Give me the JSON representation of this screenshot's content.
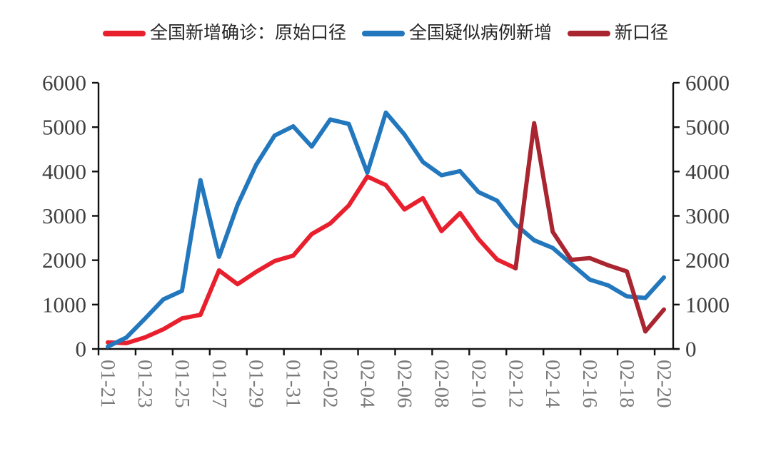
{
  "legend": {
    "items": [
      {
        "key": "confirmed_original",
        "label": "全国新增确诊：原始口径",
        "color": "#e8202d"
      },
      {
        "key": "suspected_new",
        "label": "全国疑似病例新增",
        "color": "#2277bd"
      },
      {
        "key": "new_caliber",
        "label": "新口径",
        "color": "#a92530"
      }
    ]
  },
  "chart_data": {
    "type": "line",
    "title": "",
    "xlabel": "",
    "ylabel": "",
    "grid": false,
    "legend_position": "top",
    "dual_y_axis": true,
    "ylim": [
      0,
      6000
    ],
    "y_tick_step": 1000,
    "y_ticks": [
      "0",
      "1000",
      "2000",
      "3000",
      "4000",
      "5000",
      "6000"
    ],
    "x_label_every": 2,
    "x_label_rotation_deg": 90,
    "categories": [
      "01-21",
      "01-22",
      "01-23",
      "01-24",
      "01-25",
      "01-26",
      "01-27",
      "01-28",
      "01-29",
      "01-30",
      "01-31",
      "02-01",
      "02-02",
      "02-03",
      "02-04",
      "02-05",
      "02-06",
      "02-07",
      "02-08",
      "02-09",
      "02-10",
      "02-11",
      "02-12",
      "02-13",
      "02-14",
      "02-15",
      "02-16",
      "02-17",
      "02-18",
      "02-19",
      "02-20"
    ],
    "series": [
      {
        "key": "confirmed_original",
        "name": "全国新增确诊：原始口径",
        "color": "#e8202d",
        "values": [
          149,
          131,
          259,
          444,
          688,
          769,
          1771,
          1459,
          1737,
          1982,
          2102,
          2590,
          2829,
          3235,
          3887,
          3694,
          3143,
          3399,
          2656,
          3062,
          2478,
          2015,
          1820,
          null,
          null,
          null,
          null,
          null,
          null,
          null,
          null
        ]
      },
      {
        "key": "suspected_new",
        "name": "全国疑似病例新增",
        "color": "#2277bd",
        "values": [
          53,
          257,
          680,
          1118,
          1309,
          3806,
          2077,
          3248,
          4148,
          4812,
          5019,
          4562,
          5173,
          5072,
          3971,
          5328,
          4833,
          4214,
          3916,
          4008,
          3536,
          3342,
          2807,
          2450,
          2277,
          1918,
          1563,
          1432,
          1185,
          1150,
          1614
        ]
      },
      {
        "key": "new_caliber",
        "name": "新口径",
        "color": "#a92530",
        "values": [
          null,
          null,
          null,
          null,
          null,
          null,
          null,
          null,
          null,
          null,
          null,
          null,
          null,
          null,
          null,
          null,
          null,
          null,
          null,
          null,
          null,
          null,
          1820,
          5090,
          2641,
          2009,
          2048,
          1886,
          1749,
          394,
          889
        ]
      }
    ],
    "style_colors": {
      "axis_line": "#111111",
      "y_tick_label": "#3f3f3f",
      "x_tick_label": "#7a7a7a",
      "legend_text": "#262626"
    }
  }
}
